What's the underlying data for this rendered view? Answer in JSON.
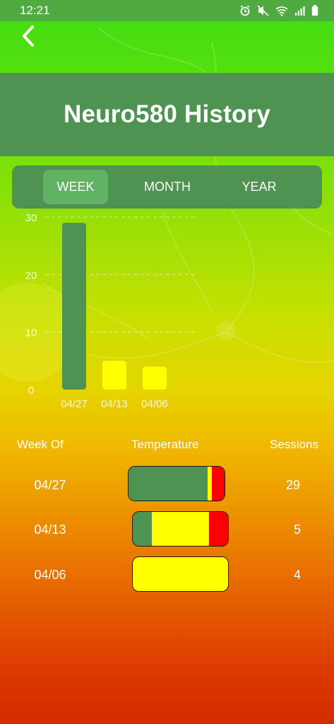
{
  "status_bar": {
    "time": "12:21",
    "icons": [
      "alarm-icon",
      "mute-icon",
      "wifi-icon",
      "signal-icon",
      "battery-icon"
    ]
  },
  "header": {
    "title": "Neuro580 History",
    "back_icon": "chevron-left-icon"
  },
  "tabs": [
    {
      "label": "WEEK",
      "active": true
    },
    {
      "label": "MONTH",
      "active": false
    },
    {
      "label": "YEAR",
      "active": false
    }
  ],
  "colors": {
    "panel": "#4e9351",
    "tab_active": "#62b264",
    "bar_green": "#4e9351",
    "bar_yellow": "#ffff00",
    "temp_green": "#4e9351",
    "temp_yellow": "#ffff00",
    "temp_red": "#ff0000"
  },
  "chart_data": {
    "type": "bar",
    "categories": [
      "04/27",
      "04/13",
      "04/06"
    ],
    "values": [
      29,
      5,
      4
    ],
    "bar_colors": [
      "#4e9351",
      "#ffff00",
      "#ffff00"
    ],
    "y_ticks": [
      "0",
      "10",
      "20",
      "30"
    ],
    "ylim": [
      0,
      30
    ],
    "grid": true,
    "title": "",
    "xlabel": "",
    "ylabel": ""
  },
  "table": {
    "headers": {
      "week": "Week Of",
      "temperature": "Temperature",
      "sessions": "Sessions"
    },
    "rows": [
      {
        "week": "04/27",
        "sessions": "29",
        "temperature": {
          "green": 0.82,
          "yellow": 0.05,
          "red": 0.13
        }
      },
      {
        "week": "04/13",
        "sessions": "5",
        "temperature": {
          "green": 0.2,
          "yellow": 0.6,
          "red": 0.2
        }
      },
      {
        "week": "04/06",
        "sessions": "4",
        "temperature": {
          "green": 0,
          "yellow": 1.0,
          "red": 0
        }
      }
    ]
  }
}
